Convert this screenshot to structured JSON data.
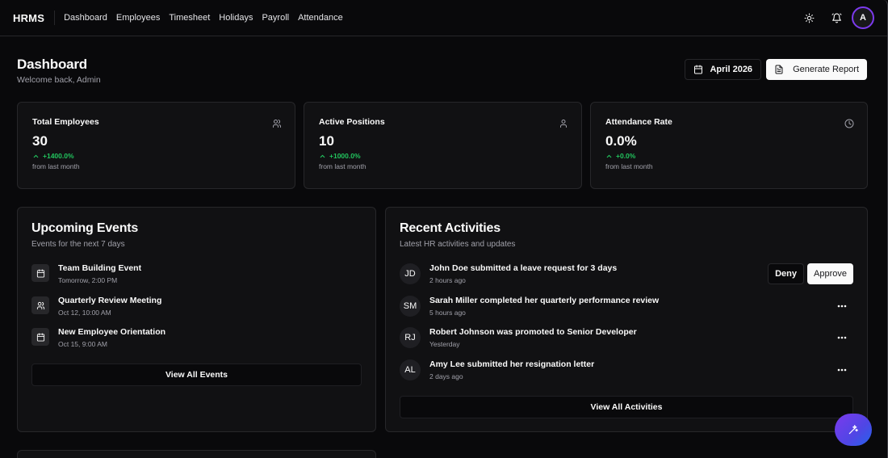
{
  "nav": {
    "brand": "HRMS",
    "links": [
      "Dashboard",
      "Employees",
      "Timesheet",
      "Holidays",
      "Payroll",
      "Attendance"
    ],
    "avatar_initial": "A",
    "icons": [
      "sun-icon",
      "bell-icon"
    ]
  },
  "header": {
    "title": "Dashboard",
    "subtitle": "Welcome back, Admin",
    "date_label": "April 2026",
    "report_label": "Generate Report"
  },
  "stats": [
    {
      "title": "Total Employees",
      "value": "30",
      "change": "+1400.0%",
      "note": "from last month",
      "icon": "users-icon"
    },
    {
      "title": "Active Positions",
      "value": "10",
      "change": "+1000.0%",
      "note": "from last month",
      "icon": "user-icon"
    },
    {
      "title": "Attendance Rate",
      "value": "0.0%",
      "change": "+0.0%",
      "note": "from last month",
      "icon": "clock-icon"
    }
  ],
  "events": {
    "title": "Upcoming Events",
    "subtitle": "Events for the next 7 days",
    "items": [
      {
        "title": "Team Building Event",
        "time": "Tomorrow, 2:00 PM",
        "icon": "calendar-icon"
      },
      {
        "title": "Quarterly Review Meeting",
        "time": "Oct 12, 10:00 AM",
        "icon": "users-icon"
      },
      {
        "title": "New Employee Orientation",
        "time": "Oct 15, 9:00 AM",
        "icon": "calendar-icon"
      }
    ],
    "button": "View All Events"
  },
  "activities": {
    "title": "Recent Activities",
    "subtitle": "Latest HR activities and updates",
    "items": [
      {
        "initials": "JD",
        "text": "John Doe submitted a leave request for 3 days",
        "time": "2 hours ago"
      },
      {
        "initials": "SM",
        "text": "Sarah Miller completed her quarterly performance review",
        "time": "5 hours ago"
      },
      {
        "initials": "RJ",
        "text": "Robert Johnson was promoted to Senior Developer",
        "time": "Yesterday"
      },
      {
        "initials": "AL",
        "text": "Amy Lee submitted her resignation letter",
        "time": "2 days ago"
      }
    ],
    "deny_label": "Deny",
    "approve_label": "Approve",
    "button": "View All Activities"
  },
  "colors": {
    "background": "#09090b",
    "card": "#111113",
    "border": "#27272a",
    "positive": "#22c55e",
    "accent": "#7c3aed"
  }
}
